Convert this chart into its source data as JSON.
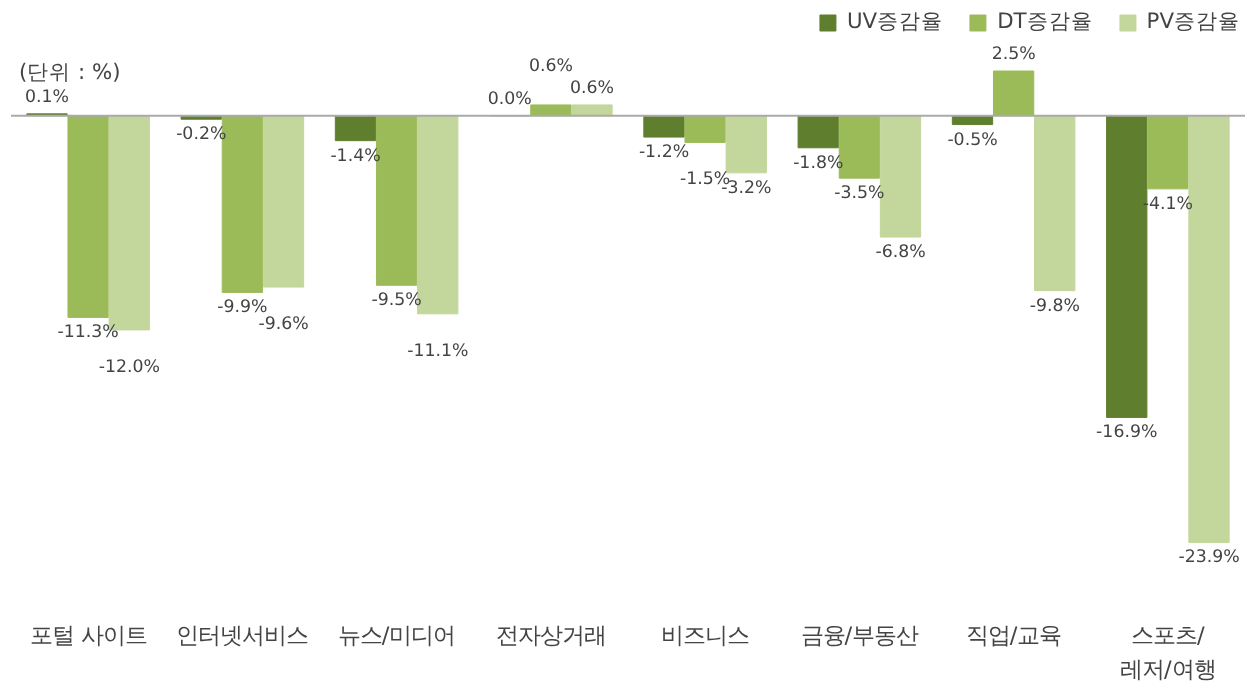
{
  "chart_data": {
    "type": "bar",
    "categories": [
      "포털 사이트",
      "인터넷서비스",
      "뉴스/미디어",
      "전자상거래",
      "비즈니스",
      "금융/부동산",
      "직업/교육",
      "스포츠/\n레저/여행"
    ],
    "series": [
      {
        "name": "UV증감율",
        "color": "#5f7f2e",
        "values": [
          0.1,
          -0.2,
          -1.4,
          0.0,
          -1.2,
          -1.8,
          -0.5,
          -16.9
        ],
        "value_labels": [
          "0.1%",
          "-0.2%",
          "-1.4%",
          "0.0%",
          "-1.2%",
          "-1.8%",
          "-0.5%",
          "-16.9%"
        ]
      },
      {
        "name": "DT증감율",
        "color": "#9bbb59",
        "values": [
          -11.3,
          -9.9,
          -9.5,
          0.6,
          -1.5,
          -3.5,
          2.5,
          -4.1
        ],
        "value_labels": [
          "-11.3%",
          "-9.9%",
          "-9.5%",
          "0.6%",
          "-1.5%",
          "-3.5%",
          "2.5%",
          "-4.1%"
        ]
      },
      {
        "name": "PV증감율",
        "color": "#c3d69b",
        "values": [
          -12.0,
          -9.6,
          -11.1,
          0.6,
          -3.2,
          -6.8,
          -9.8,
          -23.9
        ],
        "value_labels": [
          "-12.0%",
          "-9.6%",
          "-11.1%",
          "0.6%",
          "-3.2%",
          "-6.8%",
          "-9.8%",
          "-23.9%"
        ]
      }
    ],
    "relative": false,
    "legend": "top right",
    "grid": false,
    "annotations": [
      "(단위 : %)"
    ]
  }
}
